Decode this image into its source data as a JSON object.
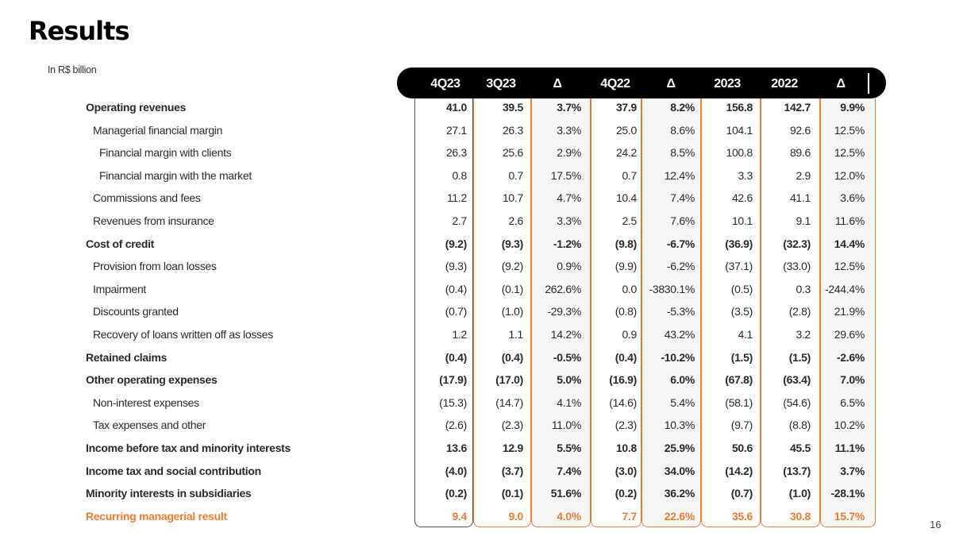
{
  "title": "Results",
  "subtitle": "In R$ billion",
  "page_number": "16",
  "columns": [
    "4Q23",
    "3Q23",
    "Δ",
    "4Q22",
    "Δ",
    "2023",
    "2022",
    "Δ"
  ],
  "rows": [
    {
      "label": "Operating revenues",
      "indent": 0,
      "style": "bold",
      "values": [
        "41.0",
        "39.5",
        "3.7%",
        "37.9",
        "8.2%",
        "156.8",
        "142.7",
        "9.9%"
      ]
    },
    {
      "label": "Managerial financial margin",
      "indent": 1,
      "style": "normal",
      "values": [
        "27.1",
        "26.3",
        "3.3%",
        "25.0",
        "8.6%",
        "104.1",
        "92.6",
        "12.5%"
      ]
    },
    {
      "label": "Financial margin with clients",
      "indent": 2,
      "style": "normal",
      "values": [
        "26.3",
        "25.6",
        "2.9%",
        "24.2",
        "8.5%",
        "100.8",
        "89.6",
        "12.5%"
      ]
    },
    {
      "label": "Financial margin with the market",
      "indent": 2,
      "style": "normal",
      "values": [
        "0.8",
        "0.7",
        "17.5%",
        "0.7",
        "12.4%",
        "3.3",
        "2.9",
        "12.0%"
      ]
    },
    {
      "label": "Commissions and fees",
      "indent": 1,
      "style": "normal",
      "values": [
        "11.2",
        "10.7",
        "4.7%",
        "10.4",
        "7.4%",
        "42.6",
        "41.1",
        "3.6%"
      ]
    },
    {
      "label": "Revenues from insurance",
      "indent": 1,
      "style": "normal",
      "values": [
        "2.7",
        "2.6",
        "3.3%",
        "2.5",
        "7.6%",
        "10.1",
        "9.1",
        "11.6%"
      ]
    },
    {
      "label": "Cost of credit",
      "indent": 0,
      "style": "bold",
      "values": [
        "(9.2)",
        "(9.3)",
        "-1.2%",
        "(9.8)",
        "-6.7%",
        "(36.9)",
        "(32.3)",
        "14.4%"
      ]
    },
    {
      "label": "Provision from loan losses",
      "indent": 1,
      "style": "normal",
      "values": [
        "(9.3)",
        "(9.2)",
        "0.9%",
        "(9.9)",
        "-6.2%",
        "(37.1)",
        "(33.0)",
        "12.5%"
      ]
    },
    {
      "label": "Impairment",
      "indent": 1,
      "style": "normal",
      "values": [
        "(0.4)",
        "(0.1)",
        "262.6%",
        "0.0",
        "-3830.1%",
        "(0.5)",
        "0.3",
        "-244.4%"
      ]
    },
    {
      "label": "Discounts granted",
      "indent": 1,
      "style": "normal",
      "values": [
        "(0.7)",
        "(1.0)",
        "-29.3%",
        "(0.8)",
        "-5.3%",
        "(3.5)",
        "(2.8)",
        "21.9%"
      ]
    },
    {
      "label": "Recovery of loans written off as losses",
      "indent": 1,
      "style": "normal",
      "values": [
        "1.2",
        "1.1",
        "14.2%",
        "0.9",
        "43.2%",
        "4.1",
        "3.2",
        "29.6%"
      ]
    },
    {
      "label": "Retained claims",
      "indent": 0,
      "style": "bold",
      "values": [
        "(0.4)",
        "(0.4)",
        "-0.5%",
        "(0.4)",
        "-10.2%",
        "(1.5)",
        "(1.5)",
        "-2.6%"
      ]
    },
    {
      "label": "Other operating expenses",
      "indent": 0,
      "style": "bold",
      "values": [
        "(17.9)",
        "(17.0)",
        "5.0%",
        "(16.9)",
        "6.0%",
        "(67.8)",
        "(63.4)",
        "7.0%"
      ]
    },
    {
      "label": "Non-interest expenses",
      "indent": 1,
      "style": "normal",
      "values": [
        "(15.3)",
        "(14.7)",
        "4.1%",
        "(14.6)",
        "5.4%",
        "(58.1)",
        "(54.6)",
        "6.5%"
      ]
    },
    {
      "label": "Tax expenses and other",
      "indent": 1,
      "style": "normal",
      "values": [
        "(2.6)",
        "(2.3)",
        "11.0%",
        "(2.3)",
        "10.3%",
        "(9.7)",
        "(8.8)",
        "10.2%"
      ]
    },
    {
      "label": "Income before tax and minority interests",
      "indent": 0,
      "style": "bold",
      "values": [
        "13.6",
        "12.9",
        "5.5%",
        "10.8",
        "25.9%",
        "50.6",
        "45.5",
        "11.1%"
      ]
    },
    {
      "label": "Income tax and social contribution",
      "indent": 0,
      "style": "bold",
      "values": [
        "(4.0)",
        "(3.7)",
        "7.4%",
        "(3.0)",
        "34.0%",
        "(14.2)",
        "(13.7)",
        "3.7%"
      ]
    },
    {
      "label": "Minority interests in subsidiaries",
      "indent": 0,
      "style": "bold",
      "values": [
        "(0.2)",
        "(0.1)",
        "51.6%",
        "(0.2)",
        "36.2%",
        "(0.7)",
        "(1.0)",
        "-28.1%"
      ]
    },
    {
      "label": "Recurring managerial result",
      "indent": 0,
      "style": "final",
      "values": [
        "9.4",
        "9.0",
        "4.0%",
        "7.7",
        "22.6%",
        "35.6",
        "30.8",
        "15.7%"
      ]
    }
  ],
  "colors": {
    "header_bg": "#000000",
    "accent": "#f07b2f",
    "shade": "#f6f6f6"
  }
}
